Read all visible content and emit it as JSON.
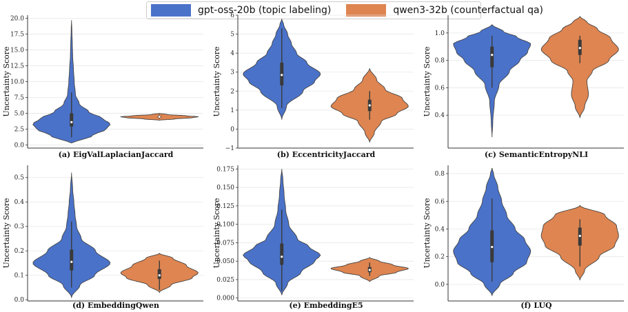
{
  "legend": [
    {
      "label": "gpt-oss-20b (topic labeling)",
      "color": "#4a72c9"
    },
    {
      "label": "qwen3-32b (counterfactual qa)",
      "color": "#de8551"
    }
  ],
  "chart_data": [
    {
      "type": "violin",
      "title": "(a) EigValLaplacianJaccard",
      "ylabel": "Uncertainty Score",
      "ylim": [
        -0.5,
        20.5
      ],
      "yticks": [
        0,
        2.5,
        5,
        7.5,
        10,
        12.5,
        15,
        17.5,
        20
      ],
      "tick_labels": [
        "0.0",
        "2.5",
        "5.0",
        "7.5",
        "10.0",
        "12.5",
        "15.0",
        "17.5",
        "20.0"
      ],
      "series": [
        {
          "name": "gpt-oss-20b (topic labeling)",
          "profile": [
            [
              0.3,
              0.05
            ],
            [
              1.5,
              0.55
            ],
            [
              2.5,
              0.9
            ],
            [
              3.3,
              1.0
            ],
            [
              4.2,
              0.8
            ],
            [
              5.2,
              0.45
            ],
            [
              6.5,
              0.2
            ],
            [
              8,
              0.1
            ],
            [
              10,
              0.07
            ],
            [
              12,
              0.05
            ],
            [
              14,
              0.03
            ],
            [
              16,
              0.02
            ],
            [
              18,
              0.01
            ],
            [
              19.7,
              0.0
            ]
          ],
          "q1": 2.9,
          "median": 3.6,
          "q3": 5.0,
          "whisker": [
            1.2,
            8.3
          ]
        },
        {
          "name": "qwen3-32b (counterfactual qa)",
          "profile": [
            [
              3.9,
              0.0
            ],
            [
              4.1,
              0.4
            ],
            [
              4.3,
              0.85
            ],
            [
              4.45,
              1.0
            ],
            [
              4.6,
              0.7
            ],
            [
              4.8,
              0.2
            ],
            [
              5.0,
              0.0
            ]
          ],
          "q1": 4.3,
          "median": 4.45,
          "q3": 4.6,
          "whisker": [
            4.15,
            4.8
          ]
        }
      ]
    },
    {
      "type": "violin",
      "title": "(b) EccentricityJaccard",
      "ylabel": "Uncertainty Score",
      "ylim": [
        -1,
        6
      ],
      "yticks": [
        -1,
        0,
        1,
        2,
        3,
        4,
        5,
        6
      ],
      "tick_labels": [
        "−1",
        "0",
        "1",
        "2",
        "3",
        "4",
        "5",
        "6"
      ],
      "series": [
        {
          "name": "gpt-oss-20b (topic labeling)",
          "profile": [
            [
              0.5,
              0.0
            ],
            [
              1.2,
              0.12
            ],
            [
              2.0,
              0.55
            ],
            [
              2.5,
              0.85
            ],
            [
              2.9,
              1.0
            ],
            [
              3.5,
              0.65
            ],
            [
              4.0,
              0.38
            ],
            [
              4.5,
              0.25
            ],
            [
              5.0,
              0.15
            ],
            [
              5.5,
              0.05
            ],
            [
              5.8,
              0.0
            ]
          ],
          "q1": 2.3,
          "median": 2.85,
          "q3": 3.5,
          "whisker": [
            1.1,
            5.3
          ]
        },
        {
          "name": "qwen3-32b (counterfactual qa)",
          "profile": [
            [
              -0.7,
              0.0
            ],
            [
              -0.2,
              0.12
            ],
            [
              0.4,
              0.3
            ],
            [
              0.8,
              0.7
            ],
            [
              1.2,
              1.0
            ],
            [
              1.6,
              0.85
            ],
            [
              2.1,
              0.4
            ],
            [
              2.6,
              0.18
            ],
            [
              3.2,
              0.0
            ]
          ],
          "q1": 0.95,
          "median": 1.25,
          "q3": 1.55,
          "whisker": [
            0.5,
            2.0
          ]
        }
      ]
    },
    {
      "type": "violin",
      "title": "(c) SemanticEntropyNLI",
      "ylabel": "Uncertainty Score",
      "ylim": [
        0.16,
        1.13
      ],
      "yticks": [
        0.4,
        0.6,
        0.8,
        1.0
      ],
      "tick_labels": [
        "0.4",
        "0.6",
        "0.8",
        "1.0"
      ],
      "series": [
        {
          "name": "gpt-oss-20b (topic labeling)",
          "profile": [
            [
              0.24,
              0.0
            ],
            [
              0.35,
              0.02
            ],
            [
              0.5,
              0.06
            ],
            [
              0.62,
              0.18
            ],
            [
              0.72,
              0.45
            ],
            [
              0.8,
              0.72
            ],
            [
              0.86,
              0.92
            ],
            [
              0.92,
              1.0
            ],
            [
              0.97,
              0.65
            ],
            [
              1.01,
              0.3
            ],
            [
              1.06,
              0.0
            ]
          ],
          "q1": 0.75,
          "median": 0.84,
          "q3": 0.9,
          "whisker": [
            0.6,
            0.98
          ]
        },
        {
          "name": "qwen3-32b (counterfactual qa)",
          "profile": [
            [
              0.38,
              0.0
            ],
            [
              0.46,
              0.12
            ],
            [
              0.55,
              0.22
            ],
            [
              0.65,
              0.18
            ],
            [
              0.72,
              0.32
            ],
            [
              0.8,
              0.75
            ],
            [
              0.88,
              1.0
            ],
            [
              0.96,
              0.8
            ],
            [
              1.03,
              0.45
            ],
            [
              1.08,
              0.18
            ],
            [
              1.12,
              0.0
            ]
          ],
          "q1": 0.84,
          "median": 0.89,
          "q3": 0.95,
          "whisker": [
            0.78,
            0.98
          ]
        }
      ]
    },
    {
      "type": "violin",
      "title": "(d) EmbeddingQwen",
      "ylabel": "Uncertainty Score",
      "ylim": [
        -0.005,
        0.55
      ],
      "yticks": [
        0,
        0.1,
        0.2,
        0.3,
        0.4,
        0.5
      ],
      "tick_labels": [
        "0.0",
        "0.1",
        "0.2",
        "0.3",
        "0.4",
        "0.5"
      ],
      "series": [
        {
          "name": "gpt-oss-20b (topic labeling)",
          "profile": [
            [
              0.01,
              0.0
            ],
            [
              0.06,
              0.22
            ],
            [
              0.1,
              0.6
            ],
            [
              0.15,
              1.0
            ],
            [
              0.2,
              0.62
            ],
            [
              0.25,
              0.25
            ],
            [
              0.3,
              0.13
            ],
            [
              0.35,
              0.09
            ],
            [
              0.4,
              0.06
            ],
            [
              0.45,
              0.03
            ],
            [
              0.52,
              0.0
            ]
          ],
          "q1": 0.12,
          "median": 0.155,
          "q3": 0.205,
          "whisker": [
            0.05,
            0.32
          ]
        },
        {
          "name": "qwen3-32b (counterfactual qa)",
          "profile": [
            [
              0.03,
              0.0
            ],
            [
              0.06,
              0.3
            ],
            [
              0.09,
              0.85
            ],
            [
              0.11,
              1.0
            ],
            [
              0.14,
              0.7
            ],
            [
              0.17,
              0.35
            ],
            [
              0.19,
              0.0
            ]
          ],
          "q1": 0.085,
          "median": 0.1,
          "q3": 0.125,
          "whisker": [
            0.04,
            0.16
          ]
        }
      ]
    },
    {
      "type": "violin",
      "title": "(e) EmbeddingE5",
      "ylabel": "Uncertainty Score",
      "ylim": [
        -0.004,
        0.18
      ],
      "yticks": [
        0,
        0.025,
        0.05,
        0.075,
        0.1,
        0.125,
        0.15,
        0.175
      ],
      "tick_labels": [
        "0.000",
        "0.025",
        "0.050",
        "0.075",
        "0.100",
        "0.125",
        "0.150",
        "0.175"
      ],
      "series": [
        {
          "name": "gpt-oss-20b (topic labeling)",
          "profile": [
            [
              0.004,
              0.0
            ],
            [
              0.02,
              0.15
            ],
            [
              0.035,
              0.5
            ],
            [
              0.05,
              0.85
            ],
            [
              0.058,
              1.0
            ],
            [
              0.07,
              0.7
            ],
            [
              0.08,
              0.4
            ],
            [
              0.1,
              0.18
            ],
            [
              0.12,
              0.1
            ],
            [
              0.14,
              0.06
            ],
            [
              0.16,
              0.03
            ],
            [
              0.175,
              0.0
            ]
          ],
          "q1": 0.045,
          "median": 0.056,
          "q3": 0.074,
          "whisker": [
            0.01,
            0.12
          ]
        },
        {
          "name": "qwen3-32b (counterfactual qa)",
          "profile": [
            [
              0.022,
              0.0
            ],
            [
              0.03,
              0.25
            ],
            [
              0.035,
              0.7
            ],
            [
              0.04,
              1.0
            ],
            [
              0.045,
              0.6
            ],
            [
              0.05,
              0.25
            ],
            [
              0.055,
              0.0
            ]
          ],
          "q1": 0.035,
          "median": 0.038,
          "q3": 0.042,
          "whisker": [
            0.03,
            0.048
          ]
        }
      ]
    },
    {
      "type": "violin",
      "title": "(f) LUQ",
      "ylabel": "Uncertainty Score",
      "ylim": [
        -0.12,
        0.86
      ],
      "yticks": [
        0,
        0.2,
        0.4,
        0.6,
        0.8
      ],
      "tick_labels": [
        "0.0",
        "0.2",
        "0.4",
        "0.6",
        "0.8"
      ],
      "series": [
        {
          "name": "gpt-oss-20b (topic labeling)",
          "profile": [
            [
              -0.08,
              0.0
            ],
            [
              0.0,
              0.2
            ],
            [
              0.08,
              0.55
            ],
            [
              0.16,
              0.9
            ],
            [
              0.24,
              1.0
            ],
            [
              0.32,
              0.85
            ],
            [
              0.4,
              0.6
            ],
            [
              0.5,
              0.38
            ],
            [
              0.6,
              0.25
            ],
            [
              0.7,
              0.15
            ],
            [
              0.8,
              0.04
            ],
            [
              0.84,
              0.0
            ]
          ],
          "q1": 0.16,
          "median": 0.27,
          "q3": 0.39,
          "whisker": [
            0.02,
            0.62
          ]
        },
        {
          "name": "qwen3-32b (counterfactual qa)",
          "profile": [
            [
              0.03,
              0.0
            ],
            [
              0.1,
              0.12
            ],
            [
              0.2,
              0.5
            ],
            [
              0.28,
              0.9
            ],
            [
              0.35,
              1.0
            ],
            [
              0.42,
              0.95
            ],
            [
              0.5,
              0.65
            ],
            [
              0.57,
              0.0
            ]
          ],
          "q1": 0.28,
          "median": 0.35,
          "q3": 0.41,
          "whisker": [
            0.13,
            0.47
          ]
        }
      ]
    }
  ]
}
